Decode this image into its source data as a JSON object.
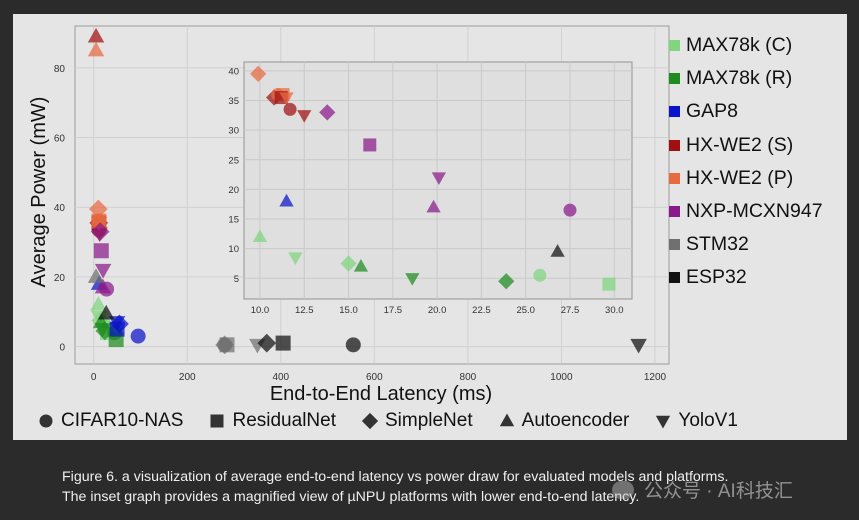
{
  "chart_data": {
    "type": "scatter",
    "xlabel": "End-to-End Latency (ms)",
    "ylabel": "Average Power (mW)",
    "xlim": [
      -40,
      1230
    ],
    "ylim": [
      -5,
      92
    ],
    "xticks": [
      0,
      200,
      400,
      600,
      800,
      1000,
      1200
    ],
    "yticks": [
      0,
      20,
      40,
      60,
      80
    ],
    "grid": true,
    "platforms": [
      {
        "name": "MAX78k (C)",
        "color": "#7fd67f"
      },
      {
        "name": "MAX78k (R)",
        "color": "#1e8c1e"
      },
      {
        "name": "GAP8",
        "color": "#0a14c8"
      },
      {
        "name": "HX-WE2 (S)",
        "color": "#a01010"
      },
      {
        "name": "HX-WE2 (P)",
        "color": "#e86a40"
      },
      {
        "name": "NXP-MCXN947",
        "color": "#8a1a8a"
      },
      {
        "name": "STM32",
        "color": "#707070"
      },
      {
        "name": "ESP32",
        "color": "#111111"
      }
    ],
    "models": [
      {
        "name": "CIFAR10-NAS",
        "marker": "circle"
      },
      {
        "name": "ResidualNet",
        "marker": "square"
      },
      {
        "name": "SimpleNet",
        "marker": "diamond"
      },
      {
        "name": "Autoencoder",
        "marker": "triangle-up"
      },
      {
        "name": "YoloV1",
        "marker": "triangle-down"
      }
    ],
    "points": [
      {
        "platform": 0,
        "model": 0,
        "x": 25.8,
        "y": 5.5
      },
      {
        "platform": 0,
        "model": 1,
        "x": 29.7,
        "y": 4
      },
      {
        "platform": 0,
        "model": 2,
        "x": 15,
        "y": 7.5
      },
      {
        "platform": 0,
        "model": 3,
        "x": 10,
        "y": 12
      },
      {
        "platform": 0,
        "model": 4,
        "x": 12,
        "y": 8.5
      },
      {
        "platform": 1,
        "model": 0,
        "x": 45,
        "y": 4
      },
      {
        "platform": 1,
        "model": 1,
        "x": 48,
        "y": 2
      },
      {
        "platform": 1,
        "model": 2,
        "x": 23.9,
        "y": 4.5
      },
      {
        "platform": 1,
        "model": 3,
        "x": 15.7,
        "y": 7
      },
      {
        "platform": 1,
        "model": 4,
        "x": 18.6,
        "y": 5
      },
      {
        "platform": 2,
        "model": 0,
        "x": 95,
        "y": 3
      },
      {
        "platform": 2,
        "model": 1,
        "x": 50,
        "y": 5
      },
      {
        "platform": 2,
        "model": 2,
        "x": 55,
        "y": 6.5
      },
      {
        "platform": 2,
        "model": 3,
        "x": 11.5,
        "y": 18
      },
      {
        "platform": 2,
        "model": 4,
        "x": 50,
        "y": 7
      },
      {
        "platform": 3,
        "model": 0,
        "x": 11.7,
        "y": 33.5
      },
      {
        "platform": 3,
        "model": 1,
        "x": 11.2,
        "y": 35.5
      },
      {
        "platform": 3,
        "model": 2,
        "x": 10.8,
        "y": 35.5
      },
      {
        "platform": 3,
        "model": 3,
        "x": 5,
        "y": 89
      },
      {
        "platform": 3,
        "model": 4,
        "x": 12.5,
        "y": 32.5
      },
      {
        "platform": 4,
        "model": 0,
        "x": 11,
        "y": 36
      },
      {
        "platform": 4,
        "model": 1,
        "x": 11.3,
        "y": 36
      },
      {
        "platform": 4,
        "model": 2,
        "x": 9.9,
        "y": 39.5
      },
      {
        "platform": 4,
        "model": 3,
        "x": 5,
        "y": 85
      },
      {
        "platform": 4,
        "model": 4,
        "x": 11.5,
        "y": 35.5
      },
      {
        "platform": 5,
        "model": 0,
        "x": 27.5,
        "y": 16.5
      },
      {
        "platform": 5,
        "model": 1,
        "x": 16.2,
        "y": 27.5
      },
      {
        "platform": 5,
        "model": 2,
        "x": 13.8,
        "y": 33
      },
      {
        "platform": 5,
        "model": 3,
        "x": 19.8,
        "y": 17
      },
      {
        "platform": 5,
        "model": 4,
        "x": 20.1,
        "y": 22
      },
      {
        "platform": 6,
        "model": 0,
        "x": 280,
        "y": 0.5
      },
      {
        "platform": 6,
        "model": 1,
        "x": 285,
        "y": 0.5
      },
      {
        "platform": 6,
        "model": 2,
        "x": 280,
        "y": 0.5
      },
      {
        "platform": 6,
        "model": 3,
        "x": 5,
        "y": 20
      },
      {
        "platform": 6,
        "model": 4,
        "x": 350,
        "y": 0.5
      },
      {
        "platform": 7,
        "model": 0,
        "x": 555,
        "y": 0.5
      },
      {
        "platform": 7,
        "model": 1,
        "x": 405,
        "y": 1
      },
      {
        "platform": 7,
        "model": 2,
        "x": 370,
        "y": 1
      },
      {
        "platform": 7,
        "model": 3,
        "x": 26.8,
        "y": 9.5
      },
      {
        "platform": 7,
        "model": 4,
        "x": 1165,
        "y": 0.5
      }
    ],
    "inset": {
      "xlim": [
        9.1,
        31
      ],
      "ylim": [
        1.5,
        41.5
      ],
      "xticks": [
        10.0,
        12.5,
        15.0,
        17.5,
        20.0,
        22.5,
        25.0,
        27.5,
        30.0
      ],
      "xtick_labels": [
        "10.0",
        "12.5",
        "15.0",
        "17.5",
        "20.0",
        "22.5",
        "25.0",
        "27.5",
        "30.0"
      ],
      "yticks": [
        5,
        10,
        15,
        20,
        25,
        30,
        35,
        40
      ],
      "grid": true,
      "points": [
        {
          "platform": 0,
          "model": 3,
          "x": 10,
          "y": 12
        },
        {
          "platform": 0,
          "model": 4,
          "x": 12,
          "y": 8.5
        },
        {
          "platform": 0,
          "model": 2,
          "x": 15,
          "y": 7.5
        },
        {
          "platform": 0,
          "model": 0,
          "x": 25.8,
          "y": 5.5
        },
        {
          "platform": 0,
          "model": 1,
          "x": 29.7,
          "y": 4
        },
        {
          "platform": 1,
          "model": 3,
          "x": 15.7,
          "y": 7
        },
        {
          "platform": 1,
          "model": 4,
          "x": 18.6,
          "y": 5
        },
        {
          "platform": 1,
          "model": 2,
          "x": 23.9,
          "y": 4.5
        },
        {
          "platform": 2,
          "model": 3,
          "x": 11.5,
          "y": 18
        },
        {
          "platform": 4,
          "model": 2,
          "x": 9.9,
          "y": 39.5
        },
        {
          "platform": 3,
          "model": 2,
          "x": 10.8,
          "y": 35.5
        },
        {
          "platform": 4,
          "model": 0,
          "x": 11,
          "y": 36
        },
        {
          "platform": 4,
          "model": 1,
          "x": 11.3,
          "y": 36
        },
        {
          "platform": 3,
          "model": 1,
          "x": 11.2,
          "y": 35.5
        },
        {
          "platform": 4,
          "model": 4,
          "x": 11.5,
          "y": 35.5
        },
        {
          "platform": 3,
          "model": 0,
          "x": 11.7,
          "y": 33.5
        },
        {
          "platform": 3,
          "model": 4,
          "x": 12.5,
          "y": 32.5
        },
        {
          "platform": 5,
          "model": 2,
          "x": 13.8,
          "y": 33
        },
        {
          "platform": 5,
          "model": 1,
          "x": 16.2,
          "y": 27.5
        },
        {
          "platform": 5,
          "model": 4,
          "x": 20.1,
          "y": 22
        },
        {
          "platform": 5,
          "model": 3,
          "x": 19.8,
          "y": 17
        },
        {
          "platform": 5,
          "model": 0,
          "x": 27.5,
          "y": 16.5
        },
        {
          "platform": 7,
          "model": 3,
          "x": 26.8,
          "y": 9.5
        }
      ]
    }
  },
  "caption": {
    "line1": "Figure 6. a visualization of average end-to-end latency vs power draw for evaluated models and platforms.",
    "line2": "The inset graph provides a magnified view of µNPU platforms with lower end-to-end latency."
  },
  "watermark": "公众号 · AI科技汇"
}
